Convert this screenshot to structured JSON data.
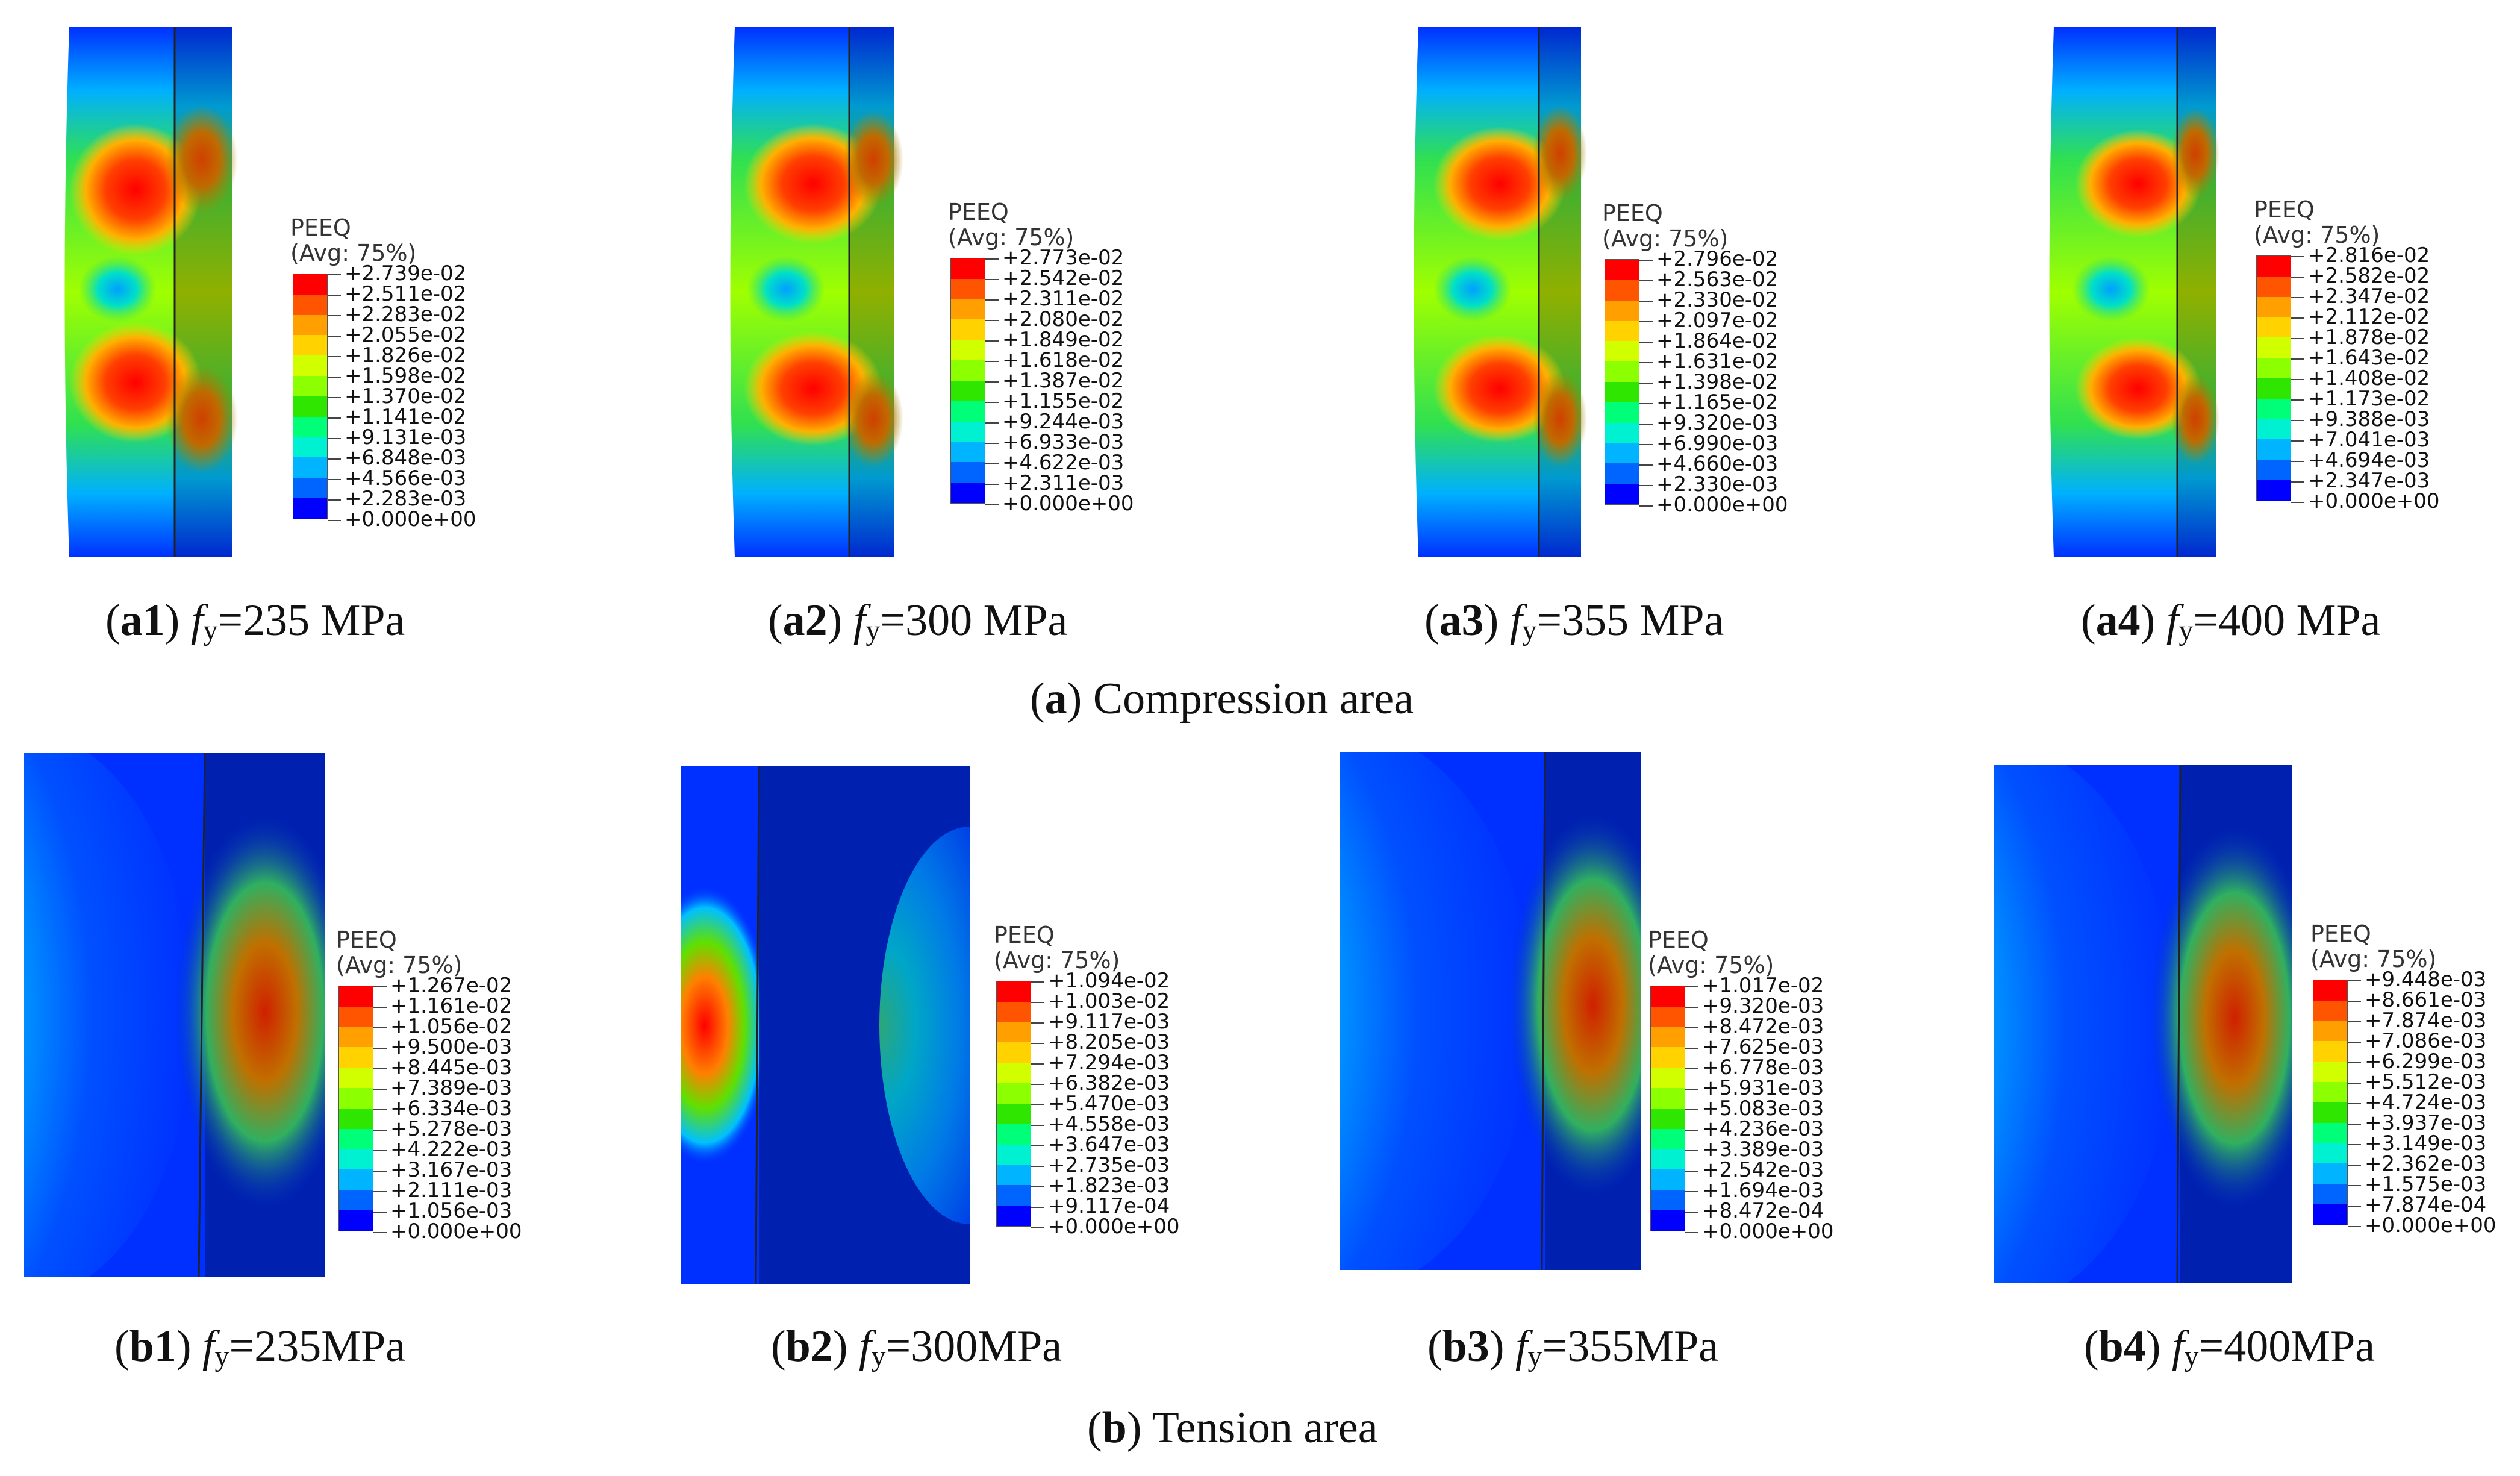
{
  "legend_title": "PEEQ",
  "legend_subtitle": "(Avg: 75%)",
  "colors": [
    "#ff0000",
    "#ff5500",
    "#ffa000",
    "#ffd200",
    "#d2ff00",
    "#8cff00",
    "#2ee600",
    "#00ff78",
    "#00f0d2",
    "#00b4ff",
    "#0064ff",
    "#0000ff"
  ],
  "panels": [
    {
      "id": "a1",
      "label": "a1",
      "fy_sub": "y",
      "fy_value": "=235 MPa",
      "legend": [
        "+2.739e-02",
        "+2.511e-02",
        "+2.283e-02",
        "+2.055e-02",
        "+1.826e-02",
        "+1.598e-02",
        "+1.370e-02",
        "+1.141e-02",
        "+9.131e-03",
        "+6.848e-03",
        "+4.566e-03",
        "+2.283e-03",
        "+0.000e+00"
      ]
    },
    {
      "id": "a2",
      "label": "a2",
      "fy_sub": "y",
      "fy_value": "=300 MPa",
      "legend": [
        "+2.773e-02",
        "+2.542e-02",
        "+2.311e-02",
        "+2.080e-02",
        "+1.849e-02",
        "+1.618e-02",
        "+1.387e-02",
        "+1.155e-02",
        "+9.244e-03",
        "+6.933e-03",
        "+4.622e-03",
        "+2.311e-03",
        "+0.000e+00"
      ]
    },
    {
      "id": "a3",
      "label": "a3",
      "fy_sub": "y",
      "fy_value": "=355 MPa",
      "legend": [
        "+2.796e-02",
        "+2.563e-02",
        "+2.330e-02",
        "+2.097e-02",
        "+1.864e-02",
        "+1.631e-02",
        "+1.398e-02",
        "+1.165e-02",
        "+9.320e-03",
        "+6.990e-03",
        "+4.660e-03",
        "+2.330e-03",
        "+0.000e+00"
      ]
    },
    {
      "id": "a4",
      "label": "a4",
      "fy_sub": "y",
      "fy_value": "=400 MPa",
      "legend": [
        "+2.816e-02",
        "+2.582e-02",
        "+2.347e-02",
        "+2.112e-02",
        "+1.878e-02",
        "+1.643e-02",
        "+1.408e-02",
        "+1.173e-02",
        "+9.388e-03",
        "+7.041e-03",
        "+4.694e-03",
        "+2.347e-03",
        "+0.000e+00"
      ]
    },
    {
      "id": "b1",
      "label": "b1",
      "fy_sub": "y",
      "fy_value": "=235MPa",
      "legend": [
        "+1.267e-02",
        "+1.161e-02",
        "+1.056e-02",
        "+9.500e-03",
        "+8.445e-03",
        "+7.389e-03",
        "+6.334e-03",
        "+5.278e-03",
        "+4.222e-03",
        "+3.167e-03",
        "+2.111e-03",
        "+1.056e-03",
        "+0.000e+00"
      ]
    },
    {
      "id": "b2",
      "label": "b2",
      "fy_sub": "y",
      "fy_value": "=300MPa",
      "legend": [
        "+1.094e-02",
        "+1.003e-02",
        "+9.117e-03",
        "+8.205e-03",
        "+7.294e-03",
        "+6.382e-03",
        "+5.470e-03",
        "+4.558e-03",
        "+3.647e-03",
        "+2.735e-03",
        "+1.823e-03",
        "+9.117e-04",
        "+0.000e+00"
      ]
    },
    {
      "id": "b3",
      "label": "b3",
      "fy_sub": "y",
      "fy_value": "=355MPa",
      "legend": [
        "+1.017e-02",
        "+9.320e-03",
        "+8.472e-03",
        "+7.625e-03",
        "+6.778e-03",
        "+5.931e-03",
        "+5.083e-03",
        "+4.236e-03",
        "+3.389e-03",
        "+2.542e-03",
        "+1.694e-03",
        "+8.472e-04",
        "+0.000e+00"
      ]
    },
    {
      "id": "b4",
      "label": "b4",
      "fy_sub": "y",
      "fy_value": "=400MPa",
      "legend": [
        "+9.448e-03",
        "+8.661e-03",
        "+7.874e-03",
        "+7.086e-03",
        "+6.299e-03",
        "+5.512e-03",
        "+4.724e-03",
        "+3.937e-03",
        "+3.149e-03",
        "+2.362e-03",
        "+1.575e-03",
        "+7.874e-04",
        "+0.000e+00"
      ]
    }
  ],
  "group_captions": {
    "a": {
      "letter": "a",
      "text": " Compression area"
    },
    "b": {
      "letter": "b",
      "text": " Tension area"
    }
  }
}
